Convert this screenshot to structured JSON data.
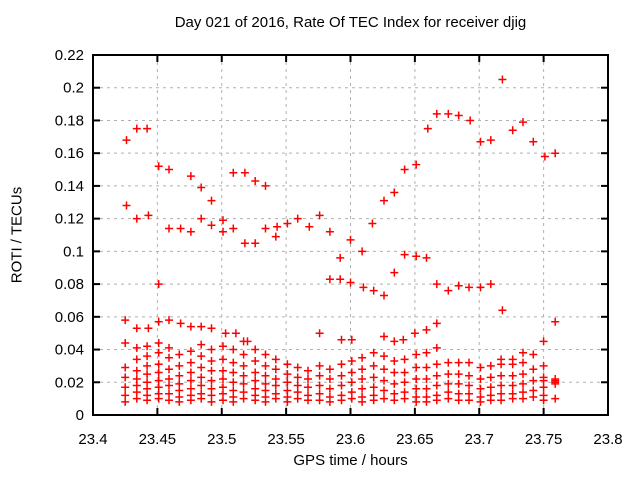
{
  "chart_data": {
    "type": "scatter",
    "title": "Day 021 of 2016, Rate Of TEC Index for receiver djig",
    "xlabel": "GPS time / hours",
    "ylabel": "ROTI / TECUs",
    "xlim": [
      23.4,
      23.8
    ],
    "ylim": [
      0,
      0.22
    ],
    "x_ticks": [
      23.4,
      23.45,
      23.5,
      23.55,
      23.6,
      23.65,
      23.7,
      23.75,
      23.8
    ],
    "x_tick_labels": [
      "23.4",
      "23.45",
      "23.5",
      "23.55",
      "23.6",
      "23.65",
      "23.7",
      "23.75",
      "23.8"
    ],
    "y_ticks": [
      0,
      0.02,
      0.04,
      0.06,
      0.08,
      0.1,
      0.12,
      0.14,
      0.16,
      0.18,
      0.2,
      0.22
    ],
    "y_tick_labels": [
      "0",
      "0.02",
      "0.04",
      "0.06",
      "0.08",
      "0.1",
      "0.12",
      "0.14",
      "0.16",
      "0.18",
      "0.2",
      "0.22"
    ],
    "grid": true,
    "legend": "none",
    "marker": "plus",
    "colors": {
      "marker": "#ff0000",
      "grid": "#b0b0b0",
      "border": "#000000",
      "background": "#ffffff",
      "text": "#000000"
    },
    "points": [
      [
        23.426,
        0.168
      ],
      [
        23.434,
        0.175
      ],
      [
        23.442,
        0.175
      ],
      [
        23.451,
        0.152
      ],
      [
        23.459,
        0.15
      ],
      [
        23.476,
        0.146
      ],
      [
        23.484,
        0.139
      ],
      [
        23.492,
        0.131
      ],
      [
        23.509,
        0.148
      ],
      [
        23.518,
        0.148
      ],
      [
        23.526,
        0.143
      ],
      [
        23.534,
        0.14
      ],
      [
        23.426,
        0.128
      ],
      [
        23.434,
        0.12
      ],
      [
        23.443,
        0.122
      ],
      [
        23.626,
        0.131
      ],
      [
        23.634,
        0.136
      ],
      [
        23.642,
        0.15
      ],
      [
        23.651,
        0.153
      ],
      [
        23.66,
        0.175
      ],
      [
        23.667,
        0.184
      ],
      [
        23.676,
        0.184
      ],
      [
        23.684,
        0.183
      ],
      [
        23.693,
        0.18
      ],
      [
        23.701,
        0.167
      ],
      [
        23.709,
        0.168
      ],
      [
        23.718,
        0.205
      ],
      [
        23.726,
        0.174
      ],
      [
        23.734,
        0.179
      ],
      [
        23.742,
        0.167
      ],
      [
        23.751,
        0.158
      ],
      [
        23.759,
        0.16
      ],
      [
        23.459,
        0.114
      ],
      [
        23.468,
        0.114
      ],
      [
        23.476,
        0.112
      ],
      [
        23.484,
        0.12
      ],
      [
        23.492,
        0.116
      ],
      [
        23.501,
        0.119
      ],
      [
        23.501,
        0.112
      ],
      [
        23.509,
        0.114
      ],
      [
        23.518,
        0.105
      ],
      [
        23.526,
        0.105
      ],
      [
        23.534,
        0.114
      ],
      [
        23.542,
        0.109
      ],
      [
        23.543,
        0.115
      ],
      [
        23.551,
        0.117
      ],
      [
        23.559,
        0.12
      ],
      [
        23.568,
        0.115
      ],
      [
        23.576,
        0.122
      ],
      [
        23.584,
        0.112
      ],
      [
        23.592,
        0.096
      ],
      [
        23.6,
        0.107
      ],
      [
        23.609,
        0.1
      ],
      [
        23.617,
        0.117
      ],
      [
        23.584,
        0.083
      ],
      [
        23.592,
        0.083
      ],
      [
        23.6,
        0.081
      ],
      [
        23.61,
        0.078
      ],
      [
        23.618,
        0.076
      ],
      [
        23.626,
        0.073
      ],
      [
        23.634,
        0.087
      ],
      [
        23.642,
        0.098
      ],
      [
        23.651,
        0.097
      ],
      [
        23.659,
        0.096
      ],
      [
        23.667,
        0.08
      ],
      [
        23.676,
        0.076
      ],
      [
        23.684,
        0.079
      ],
      [
        23.692,
        0.078
      ],
      [
        23.701,
        0.078
      ],
      [
        23.709,
        0.08
      ],
      [
        23.718,
        0.064
      ],
      [
        23.451,
        0.08
      ],
      [
        23.425,
        0.058
      ],
      [
        23.434,
        0.053
      ],
      [
        23.443,
        0.053
      ],
      [
        23.451,
        0.057
      ],
      [
        23.459,
        0.058
      ],
      [
        23.468,
        0.056
      ],
      [
        23.476,
        0.054
      ],
      [
        23.484,
        0.054
      ],
      [
        23.492,
        0.053
      ],
      [
        23.503,
        0.05
      ],
      [
        23.511,
        0.05
      ],
      [
        23.52,
        0.045
      ],
      [
        23.576,
        0.05
      ],
      [
        23.593,
        0.046
      ],
      [
        23.601,
        0.046
      ],
      [
        23.626,
        0.048
      ],
      [
        23.634,
        0.045
      ],
      [
        23.641,
        0.046
      ],
      [
        23.65,
        0.05
      ],
      [
        23.659,
        0.052
      ],
      [
        23.667,
        0.056
      ],
      [
        23.75,
        0.045
      ],
      [
        23.759,
        0.057
      ]
    ],
    "cloud_columns": [
      {
        "x": 23.425,
        "ys": [
          0.044,
          0.029,
          0.023,
          0.017,
          0.012,
          0.008
        ]
      },
      {
        "x": 23.434,
        "ys": [
          0.041,
          0.034,
          0.027,
          0.022,
          0.018,
          0.014,
          0.01
        ]
      },
      {
        "x": 23.442,
        "ys": [
          0.042,
          0.036,
          0.03,
          0.025,
          0.02,
          0.016,
          0.012,
          0.009
        ]
      },
      {
        "x": 23.451,
        "ys": [
          0.044,
          0.038,
          0.031,
          0.026,
          0.021,
          0.017,
          0.013,
          0.01
        ]
      },
      {
        "x": 23.459,
        "ys": [
          0.041,
          0.035,
          0.028,
          0.022,
          0.018,
          0.013,
          0.009
        ]
      },
      {
        "x": 23.467,
        "ys": [
          0.037,
          0.03,
          0.024,
          0.019,
          0.015,
          0.011,
          0.008
        ]
      },
      {
        "x": 23.476,
        "ys": [
          0.039,
          0.032,
          0.026,
          0.021,
          0.016,
          0.012,
          0.009
        ]
      },
      {
        "x": 23.484,
        "ys": [
          0.043,
          0.036,
          0.029,
          0.023,
          0.018,
          0.013,
          0.01
        ]
      },
      {
        "x": 23.492,
        "ys": [
          0.04,
          0.033,
          0.027,
          0.021,
          0.016,
          0.012,
          0.008
        ]
      },
      {
        "x": 23.501,
        "ys": [
          0.042,
          0.034,
          0.027,
          0.022,
          0.017,
          0.013,
          0.009
        ]
      },
      {
        "x": 23.509,
        "ys": [
          0.04,
          0.032,
          0.026,
          0.02,
          0.015,
          0.011,
          0.008
        ]
      },
      {
        "x": 23.517,
        "ys": [
          0.045,
          0.037,
          0.03,
          0.024,
          0.019,
          0.014,
          0.01
        ]
      },
      {
        "x": 23.526,
        "ys": [
          0.04,
          0.033,
          0.026,
          0.021,
          0.016,
          0.012,
          0.009
        ]
      },
      {
        "x": 23.534,
        "ys": [
          0.037,
          0.03,
          0.024,
          0.019,
          0.015,
          0.011,
          0.008
        ]
      },
      {
        "x": 23.542,
        "ys": [
          0.034,
          0.028,
          0.022,
          0.018,
          0.013,
          0.01
        ]
      },
      {
        "x": 23.551,
        "ys": [
          0.031,
          0.025,
          0.02,
          0.015,
          0.011,
          0.008
        ]
      },
      {
        "x": 23.559,
        "ys": [
          0.029,
          0.023,
          0.018,
          0.014,
          0.01
        ]
      },
      {
        "x": 23.567,
        "ys": [
          0.027,
          0.022,
          0.017,
          0.012,
          0.009
        ]
      },
      {
        "x": 23.576,
        "ys": [
          0.03,
          0.024,
          0.018,
          0.013,
          0.009
        ]
      },
      {
        "x": 23.584,
        "ys": [
          0.028,
          0.022,
          0.016,
          0.011,
          0.008
        ]
      },
      {
        "x": 23.593,
        "ys": [
          0.031,
          0.024,
          0.018,
          0.012,
          0.009
        ]
      },
      {
        "x": 23.601,
        "ys": [
          0.033,
          0.026,
          0.02,
          0.014,
          0.01
        ]
      },
      {
        "x": 23.609,
        "ys": [
          0.035,
          0.028,
          0.022,
          0.016,
          0.011,
          0.008
        ]
      },
      {
        "x": 23.618,
        "ys": [
          0.038,
          0.03,
          0.023,
          0.017,
          0.012,
          0.009
        ]
      },
      {
        "x": 23.626,
        "ys": [
          0.036,
          0.028,
          0.021,
          0.015,
          0.01
        ]
      },
      {
        "x": 23.634,
        "ys": [
          0.033,
          0.026,
          0.019,
          0.013,
          0.009
        ]
      },
      {
        "x": 23.642,
        "ys": [
          0.034,
          0.026,
          0.02,
          0.014,
          0.01
        ]
      },
      {
        "x": 23.651,
        "ys": [
          0.037,
          0.029,
          0.022,
          0.016,
          0.011,
          0.008
        ]
      },
      {
        "x": 23.659,
        "ys": [
          0.038,
          0.029,
          0.022,
          0.016,
          0.011,
          0.008
        ]
      },
      {
        "x": 23.667,
        "ys": [
          0.041,
          0.031,
          0.024,
          0.018,
          0.012,
          0.009
        ]
      },
      {
        "x": 23.676,
        "ys": [
          0.032,
          0.025,
          0.019,
          0.014,
          0.01
        ]
      },
      {
        "x": 23.684,
        "ys": [
          0.032,
          0.025,
          0.019,
          0.013,
          0.009
        ]
      },
      {
        "x": 23.692,
        "ys": [
          0.032,
          0.024,
          0.018,
          0.013,
          0.009
        ]
      },
      {
        "x": 23.701,
        "ys": [
          0.029,
          0.022,
          0.016,
          0.011,
          0.008
        ]
      },
      {
        "x": 23.709,
        "ys": [
          0.03,
          0.023,
          0.017,
          0.012,
          0.009
        ]
      },
      {
        "x": 23.717,
        "ys": [
          0.034,
          0.031,
          0.024,
          0.018,
          0.013,
          0.009
        ]
      },
      {
        "x": 23.726,
        "ys": [
          0.034,
          0.031,
          0.024,
          0.018,
          0.013,
          0.01
        ]
      },
      {
        "x": 23.734,
        "ys": [
          0.038,
          0.032,
          0.025,
          0.019,
          0.014,
          0.01
        ]
      },
      {
        "x": 23.742,
        "ys": [
          0.037,
          0.028,
          0.021,
          0.015,
          0.011
        ]
      },
      {
        "x": 23.75,
        "ys": [
          0.03,
          0.023,
          0.021,
          0.017,
          0.012,
          0.009
        ]
      },
      {
        "x": 23.759,
        "ys": [
          0.022,
          0.021,
          0.02,
          0.019,
          0.01
        ]
      }
    ]
  }
}
